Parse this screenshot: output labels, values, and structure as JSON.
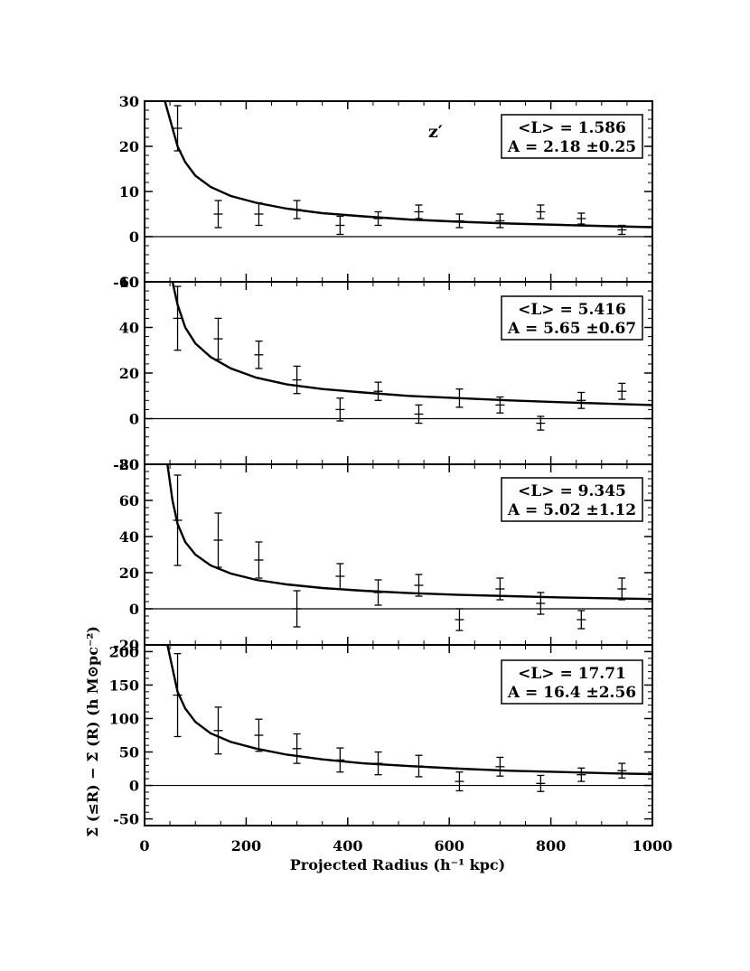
{
  "chart_data": {
    "type": "scatter",
    "band_label": "z′",
    "xlabel": "Projected Radius (h⁻¹ kpc)",
    "ylabel": "Σ̄ (≤R) − Σ̄ (R) (h M⊙pc⁻²)",
    "xlim": [
      0,
      1000
    ],
    "xticks": [
      "0",
      "200",
      "400",
      "600",
      "800",
      "1000"
    ],
    "panels": [
      {
        "ylim": [
          -10,
          30
        ],
        "yticks": [
          "-10",
          "0",
          "10",
          "20",
          "30"
        ],
        "legend": [
          "<L> = 1.586",
          "A = 2.18 ±0.25"
        ],
        "points": [
          {
            "x": 65,
            "y": 24,
            "err": 5
          },
          {
            "x": 145,
            "y": 5,
            "err": 3
          },
          {
            "x": 225,
            "y": 5,
            "err": 2.5
          },
          {
            "x": 300,
            "y": 6,
            "err": 2
          },
          {
            "x": 385,
            "y": 2.5,
            "err": 2
          },
          {
            "x": 460,
            "y": 4,
            "err": 1.5
          },
          {
            "x": 540,
            "y": 5.5,
            "err": 1.5
          },
          {
            "x": 620,
            "y": 3.5,
            "err": 1.5
          },
          {
            "x": 700,
            "y": 3.5,
            "err": 1.5
          },
          {
            "x": 780,
            "y": 5.5,
            "err": 1.5
          },
          {
            "x": 860,
            "y": 4,
            "err": 1.2
          },
          {
            "x": 940,
            "y": 1.5,
            "err": 1
          }
        ],
        "model": {
          "x": [
            40,
            50,
            65,
            80,
            100,
            130,
            170,
            220,
            280,
            350,
            430,
            520,
            620,
            720,
            820,
            920,
            1000
          ],
          "y": [
            30,
            26,
            20,
            16.5,
            13.5,
            11,
            9,
            7.5,
            6.2,
            5.2,
            4.5,
            3.8,
            3.3,
            2.9,
            2.6,
            2.3,
            2.1
          ]
        }
      },
      {
        "ylim": [
          -20,
          60
        ],
        "yticks": [
          "-20",
          "0",
          "20",
          "40",
          "60"
        ],
        "legend": [
          "<L> = 5.416",
          "A = 5.65 ±0.67"
        ],
        "points": [
          {
            "x": 65,
            "y": 44,
            "err": 14
          },
          {
            "x": 145,
            "y": 35,
            "err": 9
          },
          {
            "x": 225,
            "y": 28,
            "err": 6
          },
          {
            "x": 300,
            "y": 17,
            "err": 6
          },
          {
            "x": 385,
            "y": 4,
            "err": 5
          },
          {
            "x": 460,
            "y": 12,
            "err": 4
          },
          {
            "x": 540,
            "y": 2,
            "err": 4
          },
          {
            "x": 620,
            "y": 9,
            "err": 4
          },
          {
            "x": 700,
            "y": 6,
            "err": 3.5
          },
          {
            "x": 780,
            "y": -2,
            "err": 3
          },
          {
            "x": 860,
            "y": 8,
            "err": 3.5
          },
          {
            "x": 940,
            "y": 12,
            "err": 3.5
          }
        ],
        "model": {
          "x": [
            55,
            65,
            80,
            100,
            130,
            170,
            220,
            280,
            350,
            430,
            520,
            620,
            720,
            820,
            920,
            1000
          ],
          "y": [
            60,
            50,
            40,
            33,
            27,
            22,
            18,
            15,
            13,
            11.5,
            10,
            9,
            8,
            7.2,
            6.5,
            6
          ]
        }
      },
      {
        "ylim": [
          -20,
          80
        ],
        "yticks": [
          "-20",
          "0",
          "20",
          "40",
          "60",
          "80"
        ],
        "legend": [
          "<L> = 9.345",
          "A = 5.02 ±1.12"
        ],
        "points": [
          {
            "x": 65,
            "y": 49,
            "err": 25
          },
          {
            "x": 145,
            "y": 38,
            "err": 15
          },
          {
            "x": 225,
            "y": 27,
            "err": 10
          },
          {
            "x": 300,
            "y": 0,
            "err": 10
          },
          {
            "x": 385,
            "y": 18,
            "err": 7
          },
          {
            "x": 460,
            "y": 9,
            "err": 7
          },
          {
            "x": 540,
            "y": 13,
            "err": 6
          },
          {
            "x": 620,
            "y": -6,
            "err": 6
          },
          {
            "x": 700,
            "y": 11,
            "err": 6
          },
          {
            "x": 780,
            "y": 3,
            "err": 6
          },
          {
            "x": 860,
            "y": -6,
            "err": 5
          },
          {
            "x": 940,
            "y": 11,
            "err": 6
          }
        ],
        "model": {
          "x": [
            45,
            55,
            65,
            80,
            100,
            130,
            170,
            220,
            280,
            350,
            430,
            520,
            620,
            720,
            820,
            920,
            1000
          ],
          "y": [
            80,
            60,
            47,
            37,
            30,
            24,
            19.5,
            16,
            13.5,
            11.5,
            10,
            8.7,
            7.7,
            7,
            6.3,
            5.8,
            5.4
          ]
        }
      },
      {
        "ylim": [
          -60,
          210
        ],
        "yticks": [
          "-50",
          "0",
          "50",
          "100",
          "150",
          "200"
        ],
        "legend": [
          "<L> = 17.71",
          "A = 16.4 ±2.56"
        ],
        "points": [
          {
            "x": 65,
            "y": 135,
            "err": 62
          },
          {
            "x": 145,
            "y": 82,
            "err": 35
          },
          {
            "x": 225,
            "y": 75,
            "err": 24
          },
          {
            "x": 300,
            "y": 55,
            "err": 22
          },
          {
            "x": 385,
            "y": 38,
            "err": 18
          },
          {
            "x": 460,
            "y": 33,
            "err": 17
          },
          {
            "x": 540,
            "y": 29,
            "err": 16
          },
          {
            "x": 620,
            "y": 6,
            "err": 14
          },
          {
            "x": 700,
            "y": 28,
            "err": 14
          },
          {
            "x": 780,
            "y": 3,
            "err": 12
          },
          {
            "x": 860,
            "y": 16,
            "err": 10
          },
          {
            "x": 940,
            "y": 22,
            "err": 11
          }
        ],
        "model": {
          "x": [
            45,
            55,
            65,
            80,
            100,
            130,
            170,
            220,
            280,
            350,
            430,
            520,
            620,
            720,
            820,
            920,
            1000
          ],
          "y": [
            210,
            175,
            140,
            115,
            95,
            78,
            65,
            55,
            46,
            39,
            33,
            29,
            25,
            22,
            20,
            18,
            17
          ]
        }
      }
    ]
  }
}
